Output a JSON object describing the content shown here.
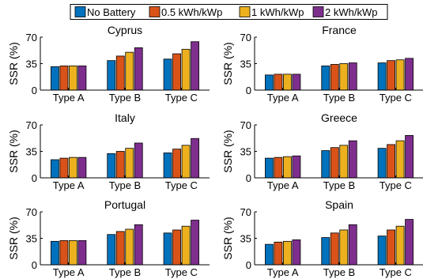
{
  "chart_data": {
    "type": "bar",
    "categories": [
      "Type A",
      "Type B",
      "Type C"
    ],
    "ylabel": "SSR (%)",
    "ylim": [
      0,
      70
    ],
    "yticks": [
      0,
      35,
      70
    ],
    "grid": false,
    "legend_position": "top-center",
    "series_names": [
      "No Battery",
      "0.5 kWh/kWp",
      "1 kWh/kWp",
      "2 kWh/kWp"
    ],
    "series_colors": [
      "#0072BD",
      "#D95319",
      "#EDB120",
      "#7E2F8E"
    ],
    "panels": [
      {
        "title": "Cyprus",
        "series": [
          {
            "name": "No Battery",
            "values": [
              31,
              39,
              41
            ]
          },
          {
            "name": "0.5 kWh/kWp",
            "values": [
              32,
              45,
              48
            ]
          },
          {
            "name": "1 kWh/kWp",
            "values": [
              32,
              50,
              54
            ]
          },
          {
            "name": "2 kWh/kWp",
            "values": [
              32,
              56,
              64
            ]
          }
        ]
      },
      {
        "title": "France",
        "series": [
          {
            "name": "No Battery",
            "values": [
              20,
              32,
              36
            ]
          },
          {
            "name": "0.5 kWh/kWp",
            "values": [
              21,
              34,
              39
            ]
          },
          {
            "name": "1 kWh/kWp",
            "values": [
              21,
              35,
              40
            ]
          },
          {
            "name": "2 kWh/kWp",
            "values": [
              21,
              36,
              42
            ]
          }
        ]
      },
      {
        "title": "Italy",
        "series": [
          {
            "name": "No Battery",
            "values": [
              24,
              32,
              33
            ]
          },
          {
            "name": "0.5 kWh/kWp",
            "values": [
              26,
              35,
              38
            ]
          },
          {
            "name": "1 kWh/kWp",
            "values": [
              27,
              39,
              43
            ]
          },
          {
            "name": "2 kWh/kWp",
            "values": [
              27,
              46,
              52
            ]
          }
        ]
      },
      {
        "title": "Greece",
        "series": [
          {
            "name": "No Battery",
            "values": [
              26,
              36,
              39
            ]
          },
          {
            "name": "0.5 kWh/kWp",
            "values": [
              27,
              40,
              44
            ]
          },
          {
            "name": "1 kWh/kWp",
            "values": [
              28,
              43,
              49
            ]
          },
          {
            "name": "2 kWh/kWp",
            "values": [
              29,
              49,
              56
            ]
          }
        ]
      },
      {
        "title": "Portugal",
        "series": [
          {
            "name": "No Battery",
            "values": [
              31,
              40,
              42
            ]
          },
          {
            "name": "0.5 kWh/kWp",
            "values": [
              32,
              44,
              46
            ]
          },
          {
            "name": "1 kWh/kWp",
            "values": [
              32,
              47,
              51
            ]
          },
          {
            "name": "2 kWh/kWp",
            "values": [
              32,
              53,
              59
            ]
          }
        ]
      },
      {
        "title": "Spain",
        "series": [
          {
            "name": "No Battery",
            "values": [
              27,
              36,
              38
            ]
          },
          {
            "name": "0.5 kWh/kWp",
            "values": [
              30,
              42,
              46
            ]
          },
          {
            "name": "1 kWh/kWp",
            "values": [
              31,
              46,
              51
            ]
          },
          {
            "name": "2 kWh/kWp",
            "values": [
              33,
              53,
              60
            ]
          }
        ]
      }
    ]
  }
}
